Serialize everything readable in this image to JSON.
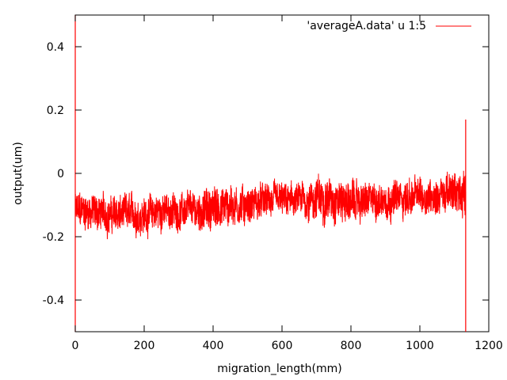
{
  "chart_data": {
    "type": "line",
    "xlabel": "migration_length(mm)",
    "ylabel": "output(um)",
    "xlim": [
      0,
      1200
    ],
    "ylim": [
      -0.5,
      0.5
    ],
    "x_ticks": [
      0,
      200,
      400,
      600,
      800,
      1000,
      1200
    ],
    "y_ticks": [
      -0.4,
      -0.2,
      0,
      0.2,
      0.4
    ],
    "x_tick_labels": [
      "0",
      "200",
      "400",
      "600",
      "800",
      "1000",
      "1200"
    ],
    "y_tick_labels": [
      "-0.4",
      "-0.2",
      "0",
      "0.2",
      "0.4"
    ],
    "grid": false,
    "legend_position": "top-right",
    "series": [
      {
        "name": "'averageA.data' u 1:5",
        "color": "#ff0000",
        "x_range": [
          0,
          1133
        ],
        "approx_envelope": {
          "x": [
            0,
            50,
            100,
            150,
            200,
            250,
            300,
            350,
            400,
            450,
            500,
            550,
            600,
            650,
            700,
            750,
            800,
            850,
            900,
            950,
            1000,
            1050,
            1100,
            1130
          ],
          "mean": [
            -0.12,
            -0.12,
            -0.13,
            -0.13,
            -0.13,
            -0.12,
            -0.12,
            -0.12,
            -0.11,
            -0.1,
            -0.1,
            -0.09,
            -0.09,
            -0.09,
            -0.08,
            -0.08,
            -0.09,
            -0.09,
            -0.08,
            -0.08,
            -0.07,
            -0.07,
            -0.06,
            -0.06
          ],
          "spread": [
            0.05,
            0.05,
            0.05,
            0.05,
            0.05,
            0.05,
            0.045,
            0.05,
            0.06,
            0.06,
            0.05,
            0.045,
            0.045,
            0.045,
            0.06,
            0.06,
            0.055,
            0.05,
            0.05,
            0.05,
            0.05,
            0.05,
            0.055,
            0.06
          ]
        },
        "spikes": [
          {
            "x": 0,
            "low": -0.5,
            "high": 0.5
          },
          {
            "x": 1133,
            "low": -0.5,
            "high": 0.17
          }
        ]
      }
    ]
  }
}
